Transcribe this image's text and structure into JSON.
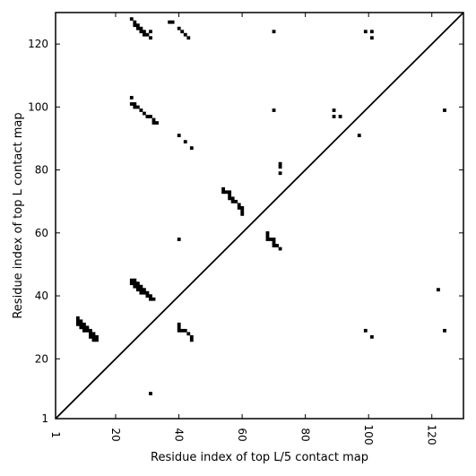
{
  "chart_data": {
    "type": "scatter",
    "title": "",
    "xlabel": "Residue index of top L/5 contact map",
    "ylabel": "Residue index of top L contact map",
    "xlim": [
      1,
      130
    ],
    "ylim": [
      1,
      130
    ],
    "x_ticks": [
      {
        "value": 1,
        "label": "1"
      },
      {
        "value": 20,
        "label": "20"
      },
      {
        "value": 40,
        "label": "40"
      },
      {
        "value": 60,
        "label": "60"
      },
      {
        "value": 80,
        "label": "80"
      },
      {
        "value": 100,
        "label": "100"
      },
      {
        "value": 120,
        "label": "120"
      }
    ],
    "y_ticks": [
      {
        "value": 1,
        "label": "1"
      },
      {
        "value": 20,
        "label": "20"
      },
      {
        "value": 40,
        "label": "40"
      },
      {
        "value": 60,
        "label": "60"
      },
      {
        "value": 80,
        "label": "80"
      },
      {
        "value": 100,
        "label": "100"
      },
      {
        "value": 120,
        "label": "120"
      }
    ],
    "diagonal": true,
    "grid": false,
    "marker_color": "#000000",
    "points": [
      {
        "x": 25,
        "y": 128
      },
      {
        "x": 26,
        "y": 127
      },
      {
        "x": 26,
        "y": 126
      },
      {
        "x": 27,
        "y": 126
      },
      {
        "x": 27,
        "y": 125
      },
      {
        "x": 28,
        "y": 125
      },
      {
        "x": 28,
        "y": 124
      },
      {
        "x": 29,
        "y": 124
      },
      {
        "x": 29,
        "y": 123
      },
      {
        "x": 30,
        "y": 123
      },
      {
        "x": 31,
        "y": 124
      },
      {
        "x": 31,
        "y": 122
      },
      {
        "x": 37,
        "y": 127
      },
      {
        "x": 38,
        "y": 127
      },
      {
        "x": 40,
        "y": 125
      },
      {
        "x": 41,
        "y": 124
      },
      {
        "x": 42,
        "y": 123
      },
      {
        "x": 43,
        "y": 122
      },
      {
        "x": 70,
        "y": 124
      },
      {
        "x": 99,
        "y": 124
      },
      {
        "x": 101,
        "y": 124
      },
      {
        "x": 101,
        "y": 122
      },
      {
        "x": 25,
        "y": 103
      },
      {
        "x": 25,
        "y": 101
      },
      {
        "x": 26,
        "y": 101
      },
      {
        "x": 26,
        "y": 100
      },
      {
        "x": 27,
        "y": 100
      },
      {
        "x": 28,
        "y": 99
      },
      {
        "x": 29,
        "y": 98
      },
      {
        "x": 30,
        "y": 97
      },
      {
        "x": 31,
        "y": 97
      },
      {
        "x": 32,
        "y": 96
      },
      {
        "x": 32,
        "y": 95
      },
      {
        "x": 33,
        "y": 95
      },
      {
        "x": 70,
        "y": 99
      },
      {
        "x": 89,
        "y": 99
      },
      {
        "x": 89,
        "y": 97
      },
      {
        "x": 91,
        "y": 97
      },
      {
        "x": 124,
        "y": 99
      },
      {
        "x": 40,
        "y": 91
      },
      {
        "x": 42,
        "y": 89
      },
      {
        "x": 44,
        "y": 87
      },
      {
        "x": 97,
        "y": 91
      },
      {
        "x": 72,
        "y": 82
      },
      {
        "x": 72,
        "y": 81
      },
      {
        "x": 72,
        "y": 79
      },
      {
        "x": 54,
        "y": 74
      },
      {
        "x": 54,
        "y": 73
      },
      {
        "x": 55,
        "y": 73
      },
      {
        "x": 56,
        "y": 73
      },
      {
        "x": 56,
        "y": 72
      },
      {
        "x": 56,
        "y": 71
      },
      {
        "x": 57,
        "y": 71
      },
      {
        "x": 57,
        "y": 70
      },
      {
        "x": 58,
        "y": 70
      },
      {
        "x": 59,
        "y": 69
      },
      {
        "x": 59,
        "y": 68
      },
      {
        "x": 60,
        "y": 68
      },
      {
        "x": 60,
        "y": 67
      },
      {
        "x": 60,
        "y": 66
      },
      {
        "x": 68,
        "y": 60
      },
      {
        "x": 68,
        "y": 59
      },
      {
        "x": 68,
        "y": 58
      },
      {
        "x": 69,
        "y": 58
      },
      {
        "x": 70,
        "y": 58
      },
      {
        "x": 70,
        "y": 57
      },
      {
        "x": 70,
        "y": 56
      },
      {
        "x": 71,
        "y": 56
      },
      {
        "x": 72,
        "y": 55
      },
      {
        "x": 40,
        "y": 58
      },
      {
        "x": 25,
        "y": 45
      },
      {
        "x": 26,
        "y": 45
      },
      {
        "x": 25,
        "y": 44
      },
      {
        "x": 26,
        "y": 44
      },
      {
        "x": 27,
        "y": 44
      },
      {
        "x": 26,
        "y": 43
      },
      {
        "x": 27,
        "y": 43
      },
      {
        "x": 28,
        "y": 43
      },
      {
        "x": 27,
        "y": 42
      },
      {
        "x": 28,
        "y": 42
      },
      {
        "x": 29,
        "y": 42
      },
      {
        "x": 28,
        "y": 41
      },
      {
        "x": 29,
        "y": 41
      },
      {
        "x": 30,
        "y": 41
      },
      {
        "x": 30,
        "y": 40
      },
      {
        "x": 31,
        "y": 40
      },
      {
        "x": 31,
        "y": 39
      },
      {
        "x": 32,
        "y": 39
      },
      {
        "x": 122,
        "y": 42
      },
      {
        "x": 8,
        "y": 33
      },
      {
        "x": 8,
        "y": 32
      },
      {
        "x": 9,
        "y": 32
      },
      {
        "x": 8,
        "y": 31
      },
      {
        "x": 9,
        "y": 31
      },
      {
        "x": 10,
        "y": 31
      },
      {
        "x": 9,
        "y": 30
      },
      {
        "x": 10,
        "y": 30
      },
      {
        "x": 11,
        "y": 30
      },
      {
        "x": 10,
        "y": 29
      },
      {
        "x": 11,
        "y": 29
      },
      {
        "x": 12,
        "y": 29
      },
      {
        "x": 12,
        "y": 28
      },
      {
        "x": 13,
        "y": 28
      },
      {
        "x": 12,
        "y": 27
      },
      {
        "x": 13,
        "y": 27
      },
      {
        "x": 14,
        "y": 27
      },
      {
        "x": 13,
        "y": 26
      },
      {
        "x": 14,
        "y": 26
      },
      {
        "x": 40,
        "y": 31
      },
      {
        "x": 40,
        "y": 30
      },
      {
        "x": 40,
        "y": 29
      },
      {
        "x": 41,
        "y": 29
      },
      {
        "x": 42,
        "y": 29
      },
      {
        "x": 43,
        "y": 28
      },
      {
        "x": 44,
        "y": 27
      },
      {
        "x": 44,
        "y": 26
      },
      {
        "x": 99,
        "y": 29
      },
      {
        "x": 101,
        "y": 27
      },
      {
        "x": 124,
        "y": 29
      },
      {
        "x": 31,
        "y": 9
      }
    ]
  }
}
